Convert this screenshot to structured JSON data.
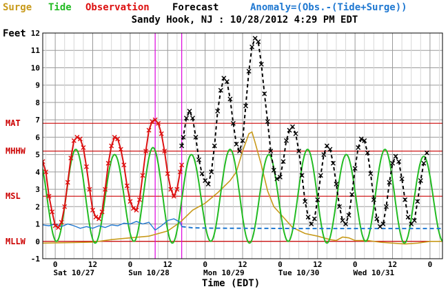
{
  "chart_data": {
    "type": "line",
    "legend": [
      {
        "key": "surge",
        "label": "Surge",
        "color": "#c89a1a"
      },
      {
        "key": "tide",
        "label": "Tide",
        "color": "#22bb22"
      },
      {
        "key": "observation",
        "label": "Observation",
        "color": "#dd1111"
      },
      {
        "key": "forecast",
        "label": "Forecast",
        "color": "#000000"
      },
      {
        "key": "anomaly",
        "label": "Anomaly=(Obs.-(Tide+Surge))",
        "color": "#1f78d1"
      }
    ],
    "title": "Sandy Hook, NJ : 10/28/2012 4:29 PM EDT",
    "ylabel": "Feet",
    "xlabel": "Time (EDT)",
    "ylim": [
      -1,
      12
    ],
    "yticks": [
      -1,
      0,
      1,
      2,
      3,
      4,
      5,
      6,
      7,
      8,
      9,
      10,
      11,
      12
    ],
    "xlim_hours": [
      -4,
      124
    ],
    "xticks": [
      {
        "h": 0,
        "label": "0"
      },
      {
        "h": 12,
        "label": "12"
      },
      {
        "h": 24,
        "label": "0"
      },
      {
        "h": 36,
        "label": "12"
      },
      {
        "h": 48,
        "label": "0"
      },
      {
        "h": 60,
        "label": "12"
      },
      {
        "h": 72,
        "label": "0"
      },
      {
        "h": 84,
        "label": "12"
      },
      {
        "h": 96,
        "label": "0"
      },
      {
        "h": 108,
        "label": "12"
      },
      {
        "h": 120,
        "label": "0"
      }
    ],
    "days": [
      {
        "h": 6,
        "label": "Sat 10/27"
      },
      {
        "h": 30,
        "label": "Sun 10/28"
      },
      {
        "h": 54,
        "label": "Mon 10/29"
      },
      {
        "h": 78,
        "label": "Tue 10/30"
      },
      {
        "h": 102,
        "label": "Wed 10/31"
      }
    ],
    "reference_lines": [
      {
        "label": "MAT",
        "y": 6.8,
        "color": "#cc0000"
      },
      {
        "label": "MHHW",
        "y": 5.2,
        "color": "#cc0000"
      },
      {
        "label": "MSL",
        "y": 2.6,
        "color": "#cc0000"
      },
      {
        "label": "MLLW",
        "y": 0.0,
        "color": "#cc0000"
      }
    ],
    "markers": [
      {
        "h": 32,
        "color": "#dd00dd"
      },
      {
        "h": 40.5,
        "color": "#dd00dd"
      }
    ],
    "tide_highs": [
      [
        -5.6,
        5.0
      ],
      [
        6.6,
        5.3
      ],
      [
        19.0,
        5.0
      ],
      [
        31.3,
        5.4
      ],
      [
        43.6,
        5.0
      ],
      [
        56.0,
        5.3
      ],
      [
        68.4,
        5.0
      ],
      [
        80.8,
        5.3
      ],
      [
        93.2,
        5.0
      ],
      [
        105.6,
        5.3
      ],
      [
        118.0,
        4.9
      ]
    ],
    "tide_lows": [
      [
        0.4,
        0.0
      ],
      [
        12.8,
        -0.1
      ],
      [
        25.2,
        0.0
      ],
      [
        37.5,
        -0.1
      ],
      [
        49.8,
        0.0
      ],
      [
        62.2,
        -0.1
      ],
      [
        74.6,
        0.0
      ],
      [
        87.0,
        -0.1
      ],
      [
        99.4,
        0.0
      ],
      [
        111.8,
        -0.1
      ],
      [
        124.2,
        0.0
      ]
    ],
    "surge": [
      [
        -4,
        -0.1
      ],
      [
        12,
        -0.05
      ],
      [
        18,
        0.1
      ],
      [
        24,
        0.2
      ],
      [
        30,
        0.3
      ],
      [
        36,
        0.6
      ],
      [
        40,
        1.1
      ],
      [
        44,
        1.8
      ],
      [
        48,
        2.2
      ],
      [
        52,
        2.8
      ],
      [
        56,
        3.5
      ],
      [
        58,
        4.0
      ],
      [
        60,
        5.2
      ],
      [
        62,
        6.2
      ],
      [
        63,
        6.3
      ],
      [
        64,
        5.7
      ],
      [
        66,
        4.4
      ],
      [
        68,
        2.9
      ],
      [
        70,
        2.0
      ],
      [
        72,
        1.6
      ],
      [
        74,
        1.2
      ],
      [
        76,
        0.8
      ],
      [
        80,
        0.45
      ],
      [
        84,
        0.3
      ],
      [
        88,
        0.1
      ],
      [
        90,
        0.05
      ],
      [
        92,
        0.25
      ],
      [
        94,
        0.2
      ],
      [
        96,
        0.05
      ],
      [
        100,
        0.05
      ],
      [
        104,
        -0.05
      ],
      [
        108,
        -0.1
      ],
      [
        112,
        -0.15
      ],
      [
        116,
        -0.1
      ],
      [
        120,
        0.0
      ],
      [
        124,
        0.0
      ]
    ],
    "anomaly": [
      [
        -4,
        0.95
      ],
      [
        -2,
        0.9
      ],
      [
        0,
        1.0
      ],
      [
        2,
        0.85
      ],
      [
        4,
        1.0
      ],
      [
        6,
        0.9
      ],
      [
        8,
        0.75
      ],
      [
        10,
        0.85
      ],
      [
        12,
        0.75
      ],
      [
        14,
        0.9
      ],
      [
        16,
        0.8
      ],
      [
        18,
        0.95
      ],
      [
        20,
        0.9
      ],
      [
        22,
        1.05
      ],
      [
        24,
        1.0
      ],
      [
        26,
        1.15
      ],
      [
        28,
        1.0
      ],
      [
        30,
        1.1
      ],
      [
        32,
        0.65
      ],
      [
        34,
        0.9
      ],
      [
        36,
        1.2
      ],
      [
        38,
        1.3
      ],
      [
        40,
        1.1
      ],
      [
        40.5,
        0.85
      ]
    ],
    "anomaly_forecast": [
      [
        40.5,
        0.85
      ],
      [
        44,
        0.78
      ],
      [
        50,
        0.76
      ],
      [
        60,
        0.75
      ],
      [
        80,
        0.74
      ],
      [
        100,
        0.74
      ],
      [
        124,
        0.74
      ]
    ],
    "observation": [
      [
        -4,
        4.6
      ],
      [
        -3,
        4.0
      ],
      [
        -2,
        2.6
      ],
      [
        -1,
        1.7
      ],
      [
        0,
        0.9
      ],
      [
        1,
        0.8
      ],
      [
        2,
        1.1
      ],
      [
        3,
        2.0
      ],
      [
        4,
        3.4
      ],
      [
        5,
        4.8
      ],
      [
        6,
        5.8
      ],
      [
        7,
        6.0
      ],
      [
        8,
        5.9
      ],
      [
        9,
        5.4
      ],
      [
        10,
        4.3
      ],
      [
        11,
        3.0
      ],
      [
        12,
        1.8
      ],
      [
        13,
        1.4
      ],
      [
        14,
        1.3
      ],
      [
        15,
        1.7
      ],
      [
        16,
        3.0
      ],
      [
        17,
        4.5
      ],
      [
        18,
        5.5
      ],
      [
        19,
        6.0
      ],
      [
        20,
        5.9
      ],
      [
        21,
        5.3
      ],
      [
        22,
        4.4
      ],
      [
        23,
        3.2
      ],
      [
        24,
        2.3
      ],
      [
        25,
        1.9
      ],
      [
        26,
        1.8
      ],
      [
        27,
        2.4
      ],
      [
        28,
        3.8
      ],
      [
        29,
        5.2
      ],
      [
        30,
        6.4
      ],
      [
        31,
        6.9
      ],
      [
        32,
        7.0
      ],
      [
        33,
        6.8
      ],
      [
        34,
        6.2
      ],
      [
        35,
        5.2
      ],
      [
        36,
        3.9
      ],
      [
        37,
        3.0
      ],
      [
        38,
        2.6
      ],
      [
        39,
        3.0
      ],
      [
        40,
        4.0
      ],
      [
        40.5,
        4.4
      ]
    ],
    "forecast": [
      [
        40.5,
        5.5
      ],
      [
        41,
        6.0
      ],
      [
        42,
        7.1
      ],
      [
        43,
        7.5
      ],
      [
        44,
        7.1
      ],
      [
        45,
        6.0
      ],
      [
        46,
        4.7
      ],
      [
        47,
        3.9
      ],
      [
        48,
        3.5
      ],
      [
        49,
        3.3
      ],
      [
        50,
        4.0
      ],
      [
        51,
        5.5
      ],
      [
        52,
        7.5
      ],
      [
        53,
        8.7
      ],
      [
        54,
        9.4
      ],
      [
        55,
        9.2
      ],
      [
        56,
        8.2
      ],
      [
        57,
        6.8
      ],
      [
        58,
        5.6
      ],
      [
        59,
        5.2
      ],
      [
        60,
        5.8
      ],
      [
        61,
        7.8
      ],
      [
        62,
        9.8
      ],
      [
        63,
        11.2
      ],
      [
        64,
        11.7
      ],
      [
        65,
        11.5
      ],
      [
        66,
        10.2
      ],
      [
        67,
        8.5
      ],
      [
        68,
        6.9
      ],
      [
        69,
        5.2
      ],
      [
        70,
        4.1
      ],
      [
        71,
        3.6
      ],
      [
        72,
        3.7
      ],
      [
        73,
        4.6
      ],
      [
        74,
        5.8
      ],
      [
        75,
        6.4
      ],
      [
        76,
        6.6
      ],
      [
        77,
        6.2
      ],
      [
        78,
        5.2
      ],
      [
        79,
        3.8
      ],
      [
        80,
        2.3
      ],
      [
        81,
        1.4
      ],
      [
        82,
        1.0
      ],
      [
        83,
        1.3
      ],
      [
        84,
        2.4
      ],
      [
        85,
        3.8
      ],
      [
        86,
        5.0
      ],
      [
        87,
        5.5
      ],
      [
        88,
        5.3
      ],
      [
        89,
        4.5
      ],
      [
        90,
        3.3
      ],
      [
        91,
        2.0
      ],
      [
        92,
        1.2
      ],
      [
        93,
        1.0
      ],
      [
        94,
        1.5
      ],
      [
        95,
        2.7
      ],
      [
        96,
        4.2
      ],
      [
        97,
        5.4
      ],
      [
        98,
        5.9
      ],
      [
        99,
        5.8
      ],
      [
        100,
        5.1
      ],
      [
        101,
        3.9
      ],
      [
        102,
        2.4
      ],
      [
        103,
        1.3
      ],
      [
        104,
        0.85
      ],
      [
        105,
        1.0
      ],
      [
        106,
        2.0
      ],
      [
        107,
        3.4
      ],
      [
        108,
        4.5
      ],
      [
        109,
        4.9
      ],
      [
        110,
        4.6
      ],
      [
        111,
        3.6
      ],
      [
        112,
        2.4
      ],
      [
        113,
        1.4
      ],
      [
        114,
        1.0
      ],
      [
        115,
        1.2
      ],
      [
        116,
        2.3
      ],
      [
        117,
        3.5
      ],
      [
        118,
        4.5
      ],
      [
        119,
        5.1
      ]
    ]
  }
}
